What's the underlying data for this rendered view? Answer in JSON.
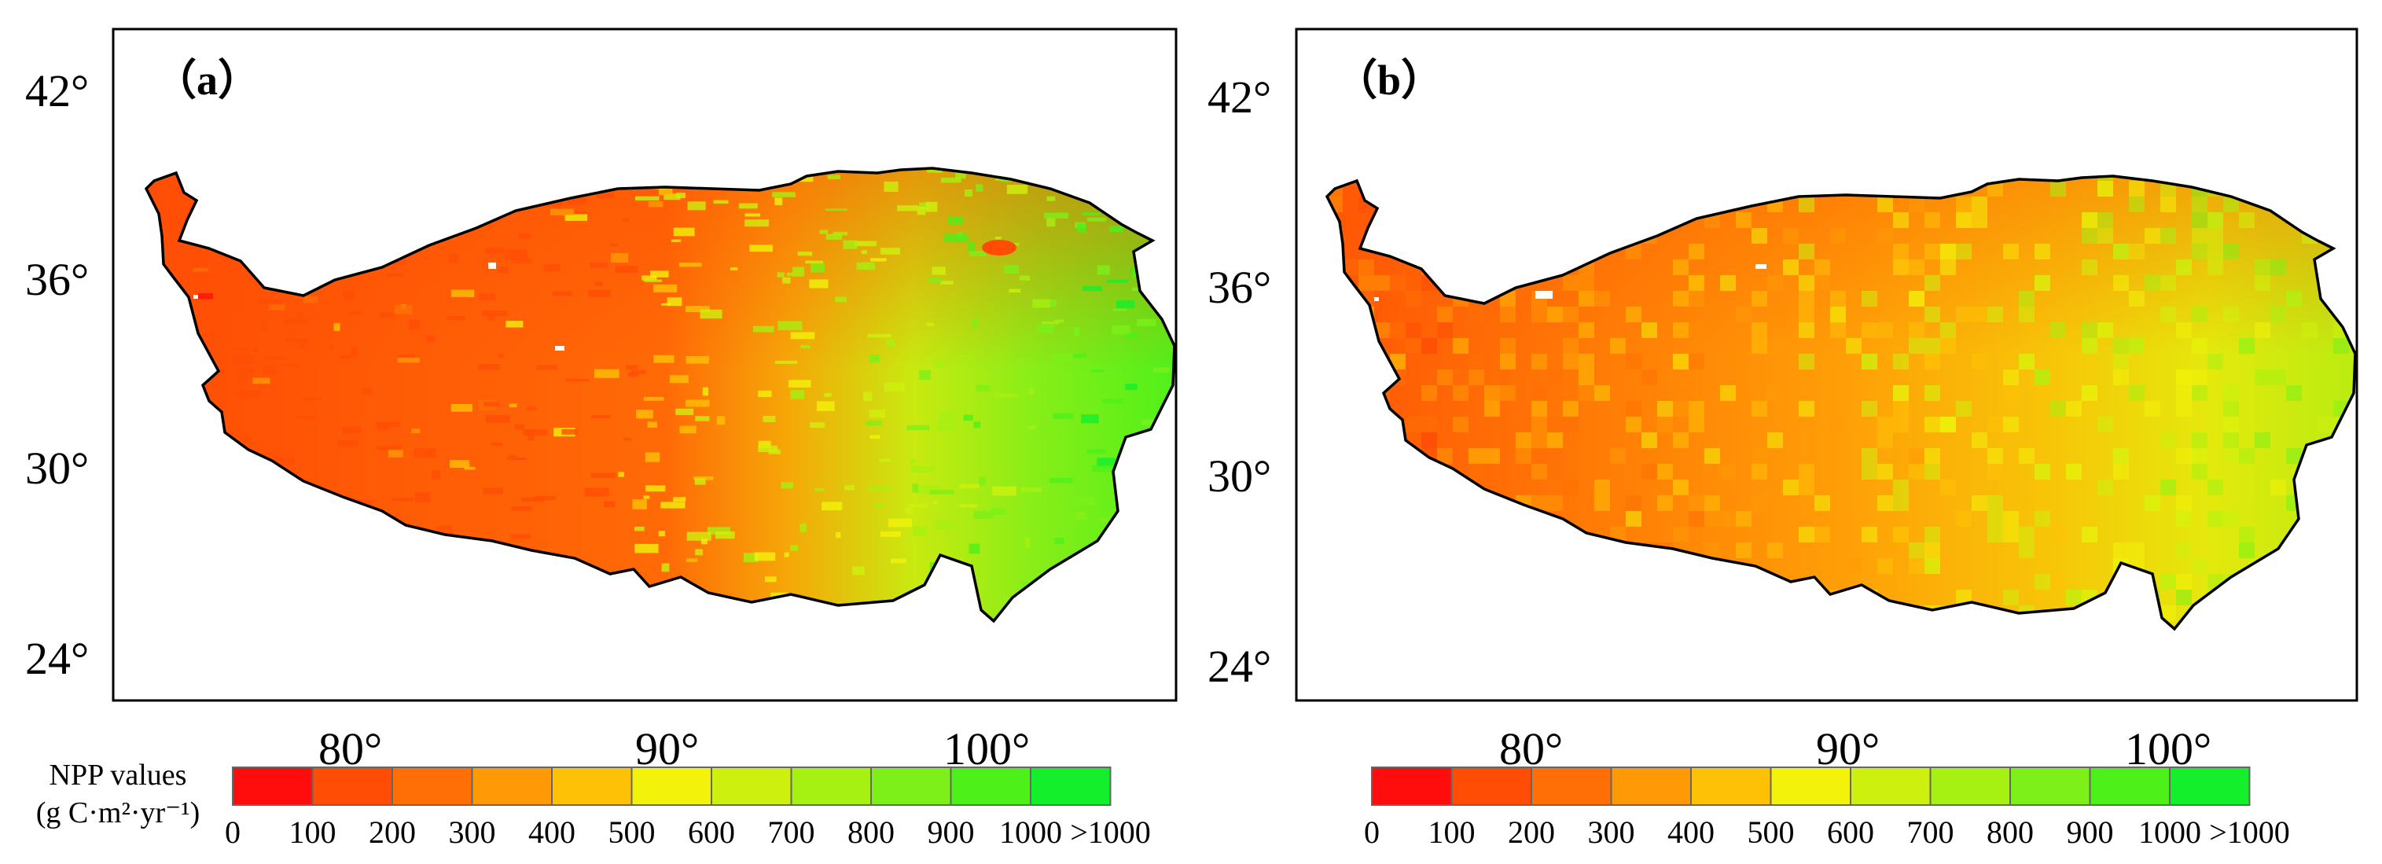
{
  "panels": [
    {
      "label": "（a）",
      "lat_labels": [
        "42°",
        "36°",
        "30°",
        "24°"
      ],
      "lon_labels": [
        "80°",
        "90°",
        "100°"
      ],
      "style": "fine"
    },
    {
      "label": "（b）",
      "lat_labels": [
        "42°",
        "36°",
        "30°",
        "24°"
      ],
      "lon_labels": [
        "80°",
        "90°",
        "100°"
      ],
      "style": "coarse"
    }
  ],
  "legend": {
    "title_line1": "NPP values",
    "title_line2": "(g C·m²·yr⁻¹)",
    "colors": [
      "#ff0d0d",
      "#ff4d05",
      "#ff6f05",
      "#ff9905",
      "#ffc105",
      "#f2f20a",
      "#cef00e",
      "#a6f012",
      "#7cf018",
      "#4ef01a",
      "#14ef2c"
    ],
    "tick_labels": [
      "0",
      "100",
      "200",
      "300",
      "400",
      "500",
      "600",
      "700",
      "800",
      "900",
      "1000",
      ">1000"
    ]
  },
  "colors": {
    "frame": "#000000",
    "legend_border": "#666666",
    "no_data": "#ffffff"
  }
}
